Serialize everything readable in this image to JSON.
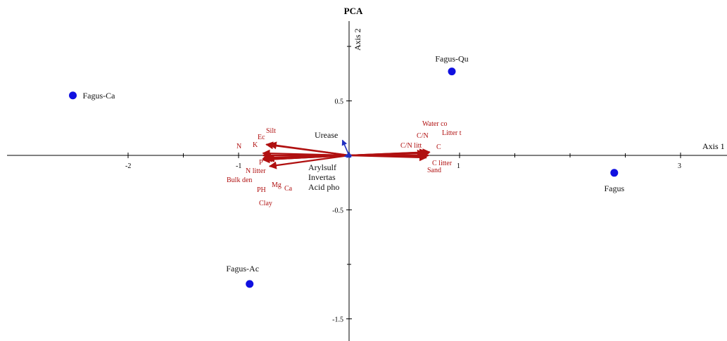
{
  "chart_data": {
    "type": "scatter",
    "title": "PCA",
    "xlabel": "Axis 1",
    "ylabel": "Axis 2",
    "xlim": [
      -2.1,
      3.3
    ],
    "ylim": [
      -1.65,
      1.05
    ],
    "x_ticks": [
      {
        "value": -2,
        "label": "-2"
      },
      {
        "value": -1,
        "label": "-1"
      },
      {
        "value": 1,
        "label": "1"
      },
      {
        "value": 3,
        "label": "3"
      }
    ],
    "y_ticks": [
      {
        "value": 0.5,
        "label": "0.5"
      },
      {
        "value": -0.5,
        "label": "-0.5"
      },
      {
        "value": -1.5,
        "label": "-1.5"
      }
    ],
    "sites": [
      {
        "name": "Fagus-Ca",
        "x": -2.5,
        "y": 0.55
      },
      {
        "name": "Fagus-Qu",
        "x": 0.93,
        "y": 0.77
      },
      {
        "name": "Fagus",
        "x": 2.4,
        "y": -0.16
      },
      {
        "name": "Fagus-Ac",
        "x": -0.9,
        "y": -1.18
      }
    ],
    "vectors_red": [
      {
        "name": "N",
        "x": -0.78,
        "y": 0.0
      },
      {
        "name": "K",
        "x": -0.78,
        "y": 0.02
      },
      {
        "name": "Ec",
        "x": -0.75,
        "y": 0.1
      },
      {
        "name": "Silt",
        "x": -0.72,
        "y": 0.1
      },
      {
        "name": "P",
        "x": -0.78,
        "y": -0.04
      },
      {
        "name": "N litter",
        "x": -0.72,
        "y": -0.1
      },
      {
        "name": "Bulk den",
        "x": -0.78,
        "y": -0.04
      },
      {
        "name": "PH",
        "x": -0.78,
        "y": -0.03
      },
      {
        "name": "Mg",
        "x": -0.76,
        "y": -0.03
      },
      {
        "name": "Ca",
        "x": -0.74,
        "y": -0.03
      },
      {
        "name": "Clay",
        "x": -0.77,
        "y": -0.02
      },
      {
        "name": "Water co",
        "x": 0.73,
        "y": 0.03
      },
      {
        "name": "Litter t",
        "x": 0.72,
        "y": 0.02
      },
      {
        "name": "C/N",
        "x": 0.7,
        "y": 0.03
      },
      {
        "name": "C/N litt",
        "x": 0.68,
        "y": 0.02
      },
      {
        "name": "C",
        "x": 0.72,
        "y": 0.0
      },
      {
        "name": "C litter",
        "x": 0.7,
        "y": -0.01
      },
      {
        "name": "Sand",
        "x": 0.7,
        "y": -0.02
      }
    ],
    "vectors_blue": [
      {
        "name": "Urease",
        "x": -0.06,
        "y": 0.14
      },
      {
        "name": "Arylsulf",
        "x": -0.02,
        "y": -0.02
      },
      {
        "name": "Invertas",
        "x": -0.03,
        "y": -0.01
      },
      {
        "name": "Acid pho",
        "x": -0.04,
        "y": -0.01
      }
    ],
    "site_color": "#1010e0",
    "red_color": "#b01010",
    "blue_color": "#2030c0",
    "grid": false
  }
}
